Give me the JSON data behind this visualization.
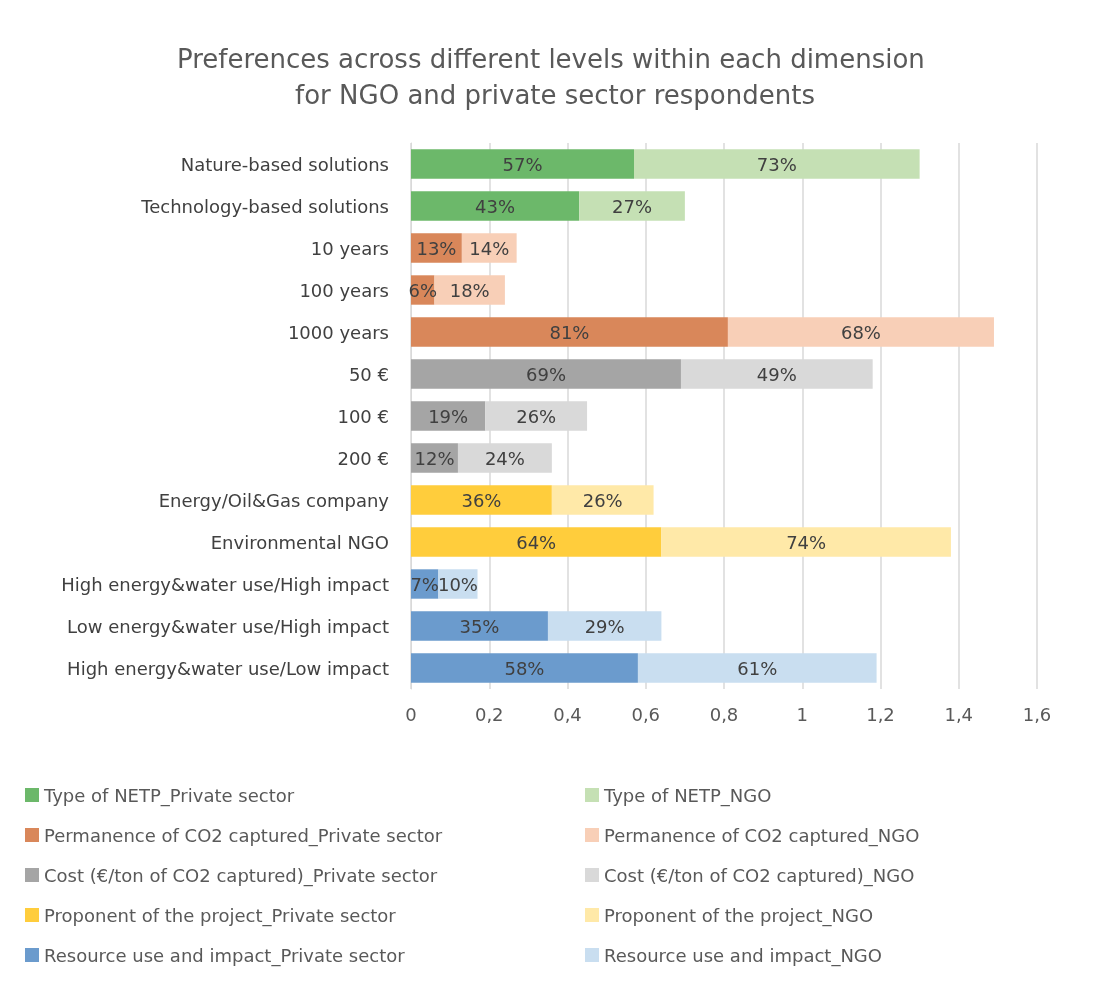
{
  "chart_data": {
    "type": "bar",
    "orientation": "horizontal",
    "stacked": true,
    "title": "Preferences across different levels within each dimension for NGO and private sector respondents",
    "categories": [
      "Nature-based solutions",
      "Technology-based solutions",
      "10 years",
      "100 years",
      "1000 years",
      "50 €",
      "100 €",
      "200 €",
      "Energy/Oil&Gas company",
      "Environmental NGO",
      "High energy&water use/High impact",
      "Low energy&water use/High impact",
      "High energy&water use/Low impact"
    ],
    "series": [
      {
        "name": "Type of NETP_Private sector",
        "color": "#6cb86a",
        "values": [
          0.57,
          0.43,
          null,
          null,
          null,
          null,
          null,
          null,
          null,
          null,
          null,
          null,
          null
        ],
        "value_labels": [
          "57%",
          "43%",
          null,
          null,
          null,
          null,
          null,
          null,
          null,
          null,
          null,
          null,
          null
        ]
      },
      {
        "name": "Type of NETP_NGO",
        "color": "#c5e0b4",
        "values": [
          0.73,
          0.27,
          null,
          null,
          null,
          null,
          null,
          null,
          null,
          null,
          null,
          null,
          null
        ],
        "value_labels": [
          "73%",
          "27%",
          null,
          null,
          null,
          null,
          null,
          null,
          null,
          null,
          null,
          null,
          null
        ]
      },
      {
        "name": "Permanence of CO2 captured_Private sector",
        "color": "#d9875a",
        "values": [
          null,
          null,
          0.13,
          0.06,
          0.81,
          null,
          null,
          null,
          null,
          null,
          null,
          null,
          null
        ],
        "value_labels": [
          null,
          null,
          "13%",
          "6%",
          "81%",
          null,
          null,
          null,
          null,
          null,
          null,
          null,
          null
        ]
      },
      {
        "name": "Permanence of CO2 captured_NGO",
        "color": "#f8cfb7",
        "values": [
          null,
          null,
          0.14,
          0.18,
          0.68,
          null,
          null,
          null,
          null,
          null,
          null,
          null,
          null
        ],
        "value_labels": [
          null,
          null,
          "14%",
          "18%",
          "68%",
          null,
          null,
          null,
          null,
          null,
          null,
          null,
          null
        ]
      },
      {
        "name": "Cost (€/ton of CO2 captured)_Private sector",
        "color": "#a5a5a5",
        "values": [
          null,
          null,
          null,
          null,
          null,
          0.69,
          0.19,
          0.12,
          null,
          null,
          null,
          null,
          null
        ],
        "value_labels": [
          null,
          null,
          null,
          null,
          null,
          "69%",
          "19%",
          "12%",
          null,
          null,
          null,
          null,
          null
        ]
      },
      {
        "name": "Cost (€/ton of CO2 captured)_NGO",
        "color": "#d9d9d9",
        "values": [
          null,
          null,
          null,
          null,
          null,
          0.49,
          0.26,
          0.24,
          null,
          null,
          null,
          null,
          null
        ],
        "value_labels": [
          null,
          null,
          null,
          null,
          null,
          "49%",
          "26%",
          "24%",
          null,
          null,
          null,
          null,
          null
        ]
      },
      {
        "name": "Proponent of the project_Private sector",
        "color": "#ffcd3c",
        "values": [
          null,
          null,
          null,
          null,
          null,
          null,
          null,
          null,
          0.36,
          0.64,
          null,
          null,
          null
        ],
        "value_labels": [
          null,
          null,
          null,
          null,
          null,
          null,
          null,
          null,
          "36%",
          "64%",
          null,
          null,
          null
        ]
      },
      {
        "name": "Proponent of the project_NGO",
        "color": "#ffe9a8",
        "values": [
          null,
          null,
          null,
          null,
          null,
          null,
          null,
          null,
          0.26,
          0.74,
          null,
          null,
          null
        ],
        "value_labels": [
          null,
          null,
          null,
          null,
          null,
          null,
          null,
          null,
          "26%",
          "74%",
          null,
          null,
          null
        ]
      },
      {
        "name": "Resource use and impact_Private sector",
        "color": "#6b9bcd",
        "values": [
          null,
          null,
          null,
          null,
          null,
          null,
          null,
          null,
          null,
          null,
          0.07,
          0.35,
          0.58
        ],
        "value_labels": [
          null,
          null,
          null,
          null,
          null,
          null,
          null,
          null,
          null,
          null,
          "7%",
          "35%",
          "58%"
        ]
      },
      {
        "name": "Resource use and impact_NGO",
        "color": "#c9def0",
        "values": [
          null,
          null,
          null,
          null,
          null,
          null,
          null,
          null,
          null,
          null,
          0.1,
          0.29,
          0.61
        ],
        "value_labels": [
          null,
          null,
          null,
          null,
          null,
          null,
          null,
          null,
          null,
          null,
          "10%",
          "29%",
          "61%"
        ]
      }
    ],
    "xlim": [
      0,
      1.6
    ],
    "xticks": [
      0,
      {
        "value": 0.2,
        "label": "0,2"
      },
      {
        "value": 0.4,
        "label": "0,4"
      },
      {
        "value": 0.6,
        "label": "0,6"
      },
      {
        "value": 0.8,
        "label": "0,8"
      },
      1,
      {
        "value": 1.2,
        "label": "1,2"
      },
      {
        "value": 1.4,
        "label": "1,4"
      },
      {
        "value": 1.6,
        "label": "1,6"
      }
    ],
    "grid": "x",
    "legend": "bottom"
  }
}
